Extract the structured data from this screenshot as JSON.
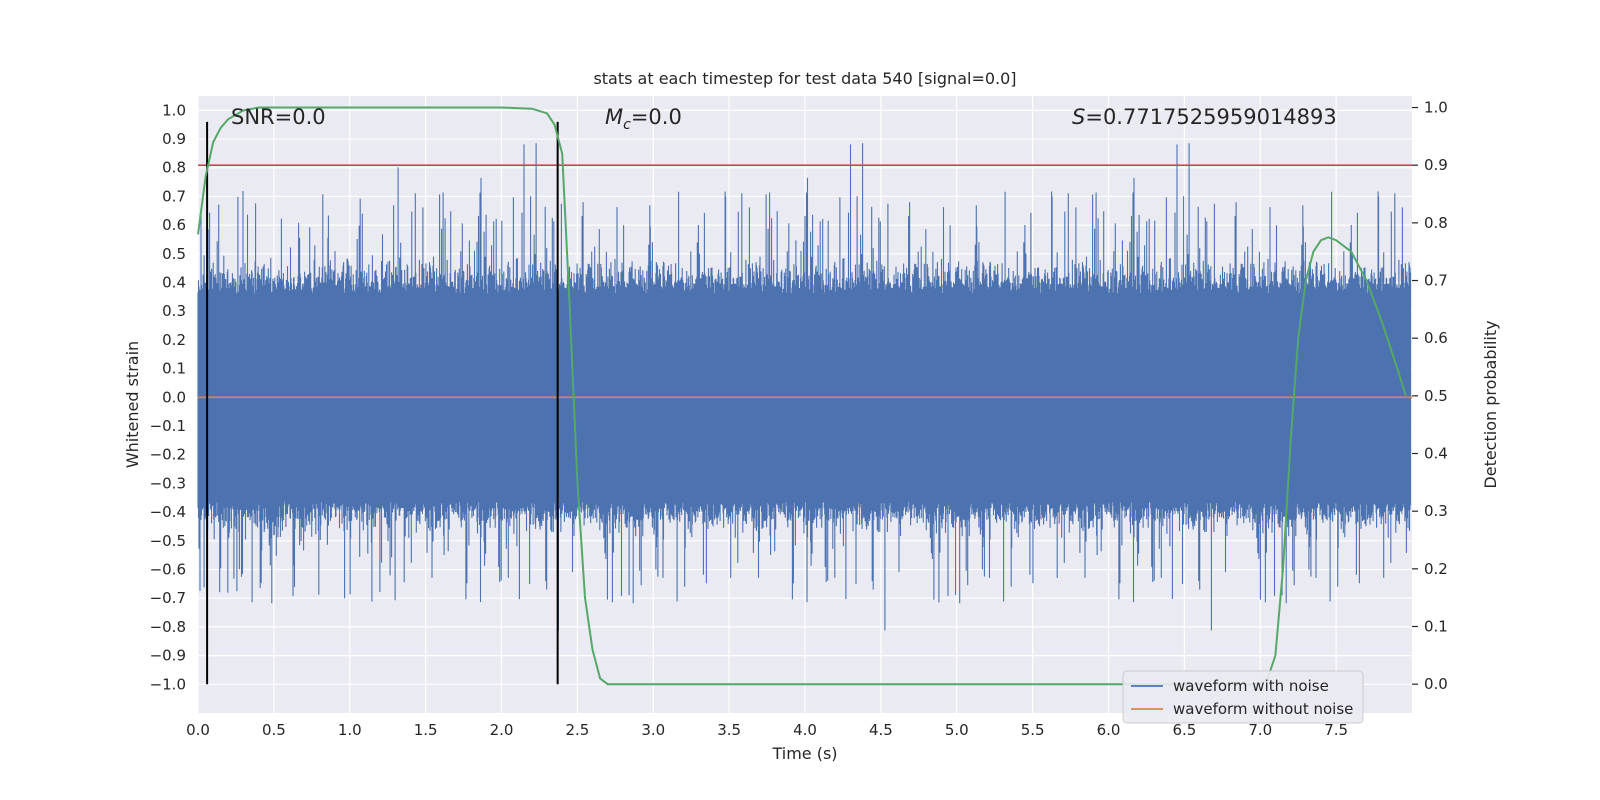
{
  "chart_data": {
    "type": "line",
    "title": "stats at each timestep for test data 540 [signal=0.0]",
    "xlabel": "Time (s)",
    "ylabel_left": "Whitened strain",
    "ylabel_right": "Detection probability",
    "xlim": [
      0.0,
      8.0
    ],
    "ylim_left": [
      -1.1,
      1.05
    ],
    "ylim_right": [
      -0.05,
      1.02
    ],
    "x_ticks": [
      "0.0",
      "0.5",
      "1.0",
      "1.5",
      "2.0",
      "2.5",
      "3.0",
      "3.5",
      "4.0",
      "4.5",
      "5.0",
      "5.5",
      "6.0",
      "6.5",
      "7.0",
      "7.5"
    ],
    "x_tick_values": [
      0.0,
      0.5,
      1.0,
      1.5,
      2.0,
      2.5,
      3.0,
      3.5,
      4.0,
      4.5,
      5.0,
      5.5,
      6.0,
      6.5,
      7.0,
      7.5
    ],
    "y_left_ticks": [
      "1.0",
      "0.9",
      "0.8",
      "0.7",
      "0.6",
      "0.5",
      "0.4",
      "0.3",
      "0.2",
      "0.1",
      "0.0",
      "−0.1",
      "−0.2",
      "−0.3",
      "−0.4",
      "−0.5",
      "−0.6",
      "−0.7",
      "−0.8",
      "−0.9",
      "−1.0"
    ],
    "y_left_tick_values": [
      1.0,
      0.9,
      0.8,
      0.7,
      0.6,
      0.5,
      0.4,
      0.3,
      0.2,
      0.1,
      0.0,
      -0.1,
      -0.2,
      -0.3,
      -0.4,
      -0.5,
      -0.6,
      -0.7,
      -0.8,
      -0.9,
      -1.0
    ],
    "y_right_ticks": [
      "1.0",
      "0.9",
      "0.8",
      "0.7",
      "0.6",
      "0.5",
      "0.4",
      "0.3",
      "0.2",
      "0.1",
      "0.0"
    ],
    "y_right_tick_values": [
      1.0,
      0.9,
      0.8,
      0.7,
      0.6,
      0.5,
      0.4,
      0.3,
      0.2,
      0.1,
      0.0
    ],
    "annotations": {
      "snr": "SNR=0.0",
      "mc_symbol": "M",
      "mc_sub": "c",
      "mc_value": "=0.0",
      "s_symbol": "S",
      "s_value": "=0.7717525959014893"
    },
    "series": [
      {
        "name": "waveform with noise",
        "color": "#4c72b0",
        "axis": "left",
        "style": "dense noise, roughly |y| ≤ 0.4 with spikes to ±0.97"
      },
      {
        "name": "waveform without noise",
        "color": "#dd8452",
        "axis": "left",
        "y": 0.0
      }
    ],
    "detection_probability": {
      "color": "#55a868",
      "axis": "right",
      "x": [
        0.0,
        0.05,
        0.1,
        0.15,
        0.2,
        0.3,
        0.4,
        0.5,
        1.0,
        1.5,
        2.0,
        2.2,
        2.3,
        2.35,
        2.4,
        2.45,
        2.5,
        2.55,
        2.6,
        2.65,
        2.7,
        3.0,
        4.0,
        5.0,
        6.0,
        6.5,
        7.0,
        7.05,
        7.1,
        7.15,
        7.2,
        7.25,
        7.3,
        7.35,
        7.4,
        7.45,
        7.5,
        7.6,
        7.7,
        7.8,
        7.9,
        7.96
      ],
      "y": [
        0.78,
        0.88,
        0.94,
        0.965,
        0.98,
        0.995,
        1.0,
        1.0,
        1.0,
        1.0,
        1.0,
        0.998,
        0.99,
        0.97,
        0.92,
        0.65,
        0.35,
        0.15,
        0.06,
        0.01,
        0.0,
        0.0,
        0.0,
        0.0,
        0.0,
        0.0,
        0.0,
        0.01,
        0.05,
        0.2,
        0.42,
        0.6,
        0.7,
        0.75,
        0.77,
        0.775,
        0.77,
        0.75,
        0.7,
        0.63,
        0.55,
        0.5
      ]
    },
    "threshold": {
      "color": "#c44e52",
      "y_right": 0.9
    },
    "vertical_markers": {
      "color": "#000000",
      "x": [
        0.06,
        2.37
      ],
      "y_range_left": [
        -1.0,
        0.96
      ]
    },
    "legend": {
      "position": "lower-right",
      "entries": [
        {
          "label": "waveform with noise",
          "color": "#4c72b0"
        },
        {
          "label": "waveform without noise",
          "color": "#dd8452"
        }
      ]
    },
    "grid": true,
    "facecolor": "#eaeaf2"
  }
}
